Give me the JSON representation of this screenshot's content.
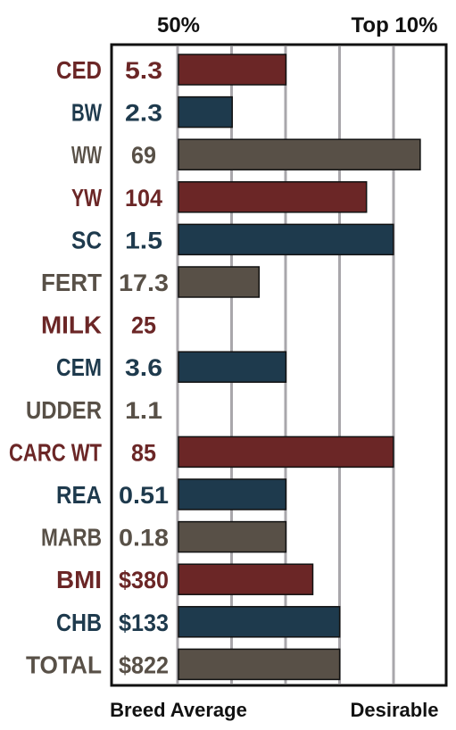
{
  "chart_data": {
    "type": "bar",
    "orientation": "horizontal",
    "header_labels": [
      "50%",
      "Top 10%"
    ],
    "footer_labels": [
      "Breed Average",
      "Desirable"
    ],
    "grid": true,
    "scale_max": 9,
    "traits": [
      {
        "name": "CED",
        "value": "5.3",
        "bar": 4,
        "color": "#6b2626"
      },
      {
        "name": "BW",
        "value": "2.3",
        "bar": 2,
        "color": "#1e3a4d"
      },
      {
        "name": "WW",
        "value": "69",
        "bar": 9,
        "color": "#585047"
      },
      {
        "name": "YW",
        "value": "104",
        "bar": 7,
        "color": "#6b2626"
      },
      {
        "name": "SC",
        "value": "1.5",
        "bar": 8,
        "color": "#1e3a4d"
      },
      {
        "name": "FERT",
        "value": "17.3",
        "bar": 3,
        "color": "#585047"
      },
      {
        "name": "MILK",
        "value": "25",
        "bar": 0,
        "color": "#6b2626"
      },
      {
        "name": "CEM",
        "value": "3.6",
        "bar": 4,
        "color": "#1e3a4d"
      },
      {
        "name": "UDDER",
        "value": "1.1",
        "bar": 0,
        "color": "#585047"
      },
      {
        "name": "CARC WT",
        "value": "85",
        "bar": 8,
        "color": "#6b2626"
      },
      {
        "name": "REA",
        "value": "0.51",
        "bar": 4,
        "color": "#1e3a4d"
      },
      {
        "name": "MARB",
        "value": "0.18",
        "bar": 4,
        "color": "#585047"
      },
      {
        "name": "BMI",
        "value": "$380",
        "bar": 5,
        "color": "#6b2626"
      },
      {
        "name": "CHB",
        "value": "$133",
        "bar": 6,
        "color": "#1e3a4d"
      },
      {
        "name": "TOTAL",
        "value": "$822",
        "bar": 6,
        "color": "#585047"
      }
    ]
  }
}
